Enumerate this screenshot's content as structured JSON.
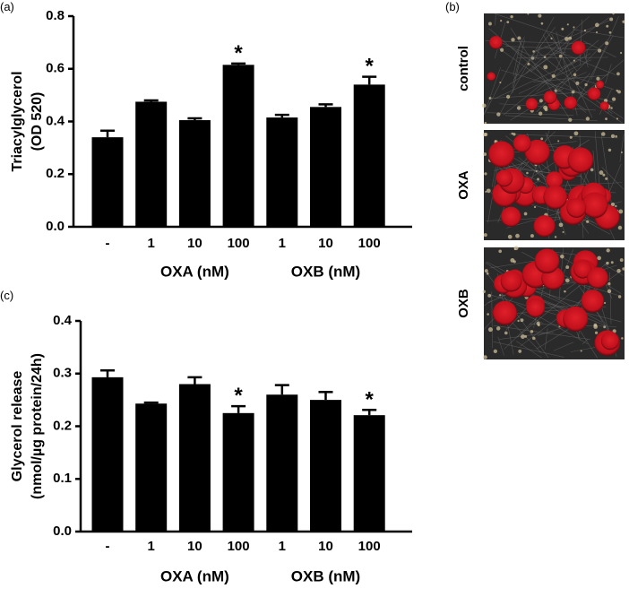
{
  "chart_data": [
    {
      "type": "bar",
      "panel_label": "(a)",
      "ylabel": [
        "Triacylglycerol",
        "(OD 520)"
      ],
      "categories": [
        "-",
        "1",
        "10",
        "100",
        "1",
        "10",
        "100"
      ],
      "group_labels": [
        "OXA (nM)",
        "OXB (nM)"
      ],
      "values": [
        0.34,
        0.475,
        0.405,
        0.615,
        0.415,
        0.455,
        0.54
      ],
      "errors": [
        0.025,
        0.005,
        0.007,
        0.005,
        0.01,
        0.01,
        0.03
      ],
      "significant": [
        false,
        false,
        false,
        true,
        false,
        false,
        true
      ],
      "significance_mark": "*",
      "color": "#000000",
      "ylim": [
        0,
        0.8
      ],
      "yticks": [
        {
          "value": 0,
          "label": "0.0"
        },
        0.2,
        0.4,
        0.6,
        0.8
      ]
    },
    {
      "type": "bar",
      "panel_label": "(c)",
      "ylabel": [
        "Glycerol release",
        "(nmol/µg protein/24h)"
      ],
      "categories": [
        "-",
        "1",
        "10",
        "100",
        "1",
        "10",
        "100"
      ],
      "group_labels": [
        "OXA (nM)",
        "OXB (nM)"
      ],
      "values": [
        0.293,
        0.243,
        0.28,
        0.225,
        0.26,
        0.25,
        0.221
      ],
      "errors": [
        0.013,
        0.002,
        0.013,
        0.013,
        0.018,
        0.015,
        0.01
      ],
      "significant": [
        false,
        false,
        false,
        true,
        false,
        false,
        true
      ],
      "significance_mark": "*",
      "color": "#000000",
      "ylim": [
        0,
        0.4
      ],
      "yticks": [
        {
          "value": 0,
          "label": "0.0"
        },
        0.1,
        0.2,
        0.3,
        0.4
      ]
    }
  ],
  "panel_b": {
    "label": "(b)",
    "images": [
      "control",
      "OXA",
      "OXB"
    ]
  }
}
